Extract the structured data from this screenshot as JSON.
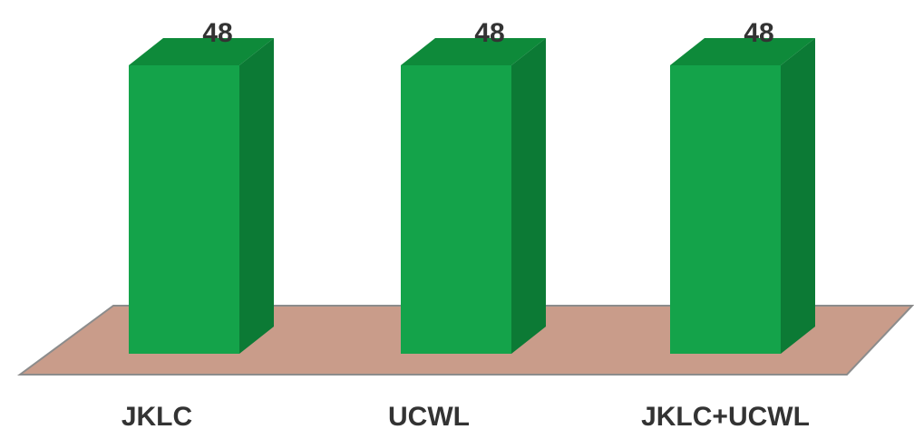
{
  "chart_data": {
    "type": "bar",
    "categories": [
      "JKLC",
      "UCWL",
      "JKLC+UCWL"
    ],
    "values": [
      48,
      48,
      48
    ],
    "title": "",
    "xlabel": "",
    "ylabel": "",
    "ylim": [
      0,
      48
    ],
    "grid": false,
    "legend": "none"
  },
  "colors": {
    "bar_front": "#14a34a",
    "bar_side": "#0c7a35",
    "bar_top": "#0e8a3a",
    "floor": "#c99c8a",
    "floor_edge": "#8c8c8c"
  }
}
